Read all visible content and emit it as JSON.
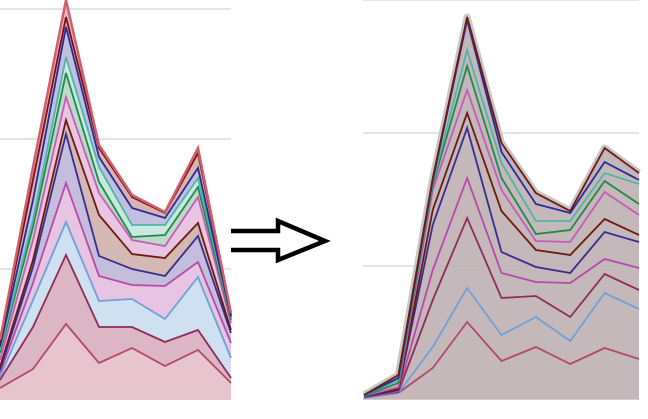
{
  "chart_data": [
    {
      "type": "area",
      "stacked": true,
      "grid": true,
      "grid_interval": 130,
      "ylim": [
        0,
        400
      ],
      "x": [
        0,
        1,
        2,
        3,
        4,
        5,
        6,
        7
      ],
      "series": [
        {
          "color": "#b04a6a",
          "fill": "#e8c4cf",
          "values": [
            11,
            30,
            75,
            36,
            51,
            33,
            49,
            16
          ]
        },
        {
          "color": "#8e2c5a",
          "fill": "#dcb6c4",
          "values": [
            8,
            42,
            69,
            36,
            21,
            24,
            20,
            5
          ]
        },
        {
          "color": "#6fa1d6",
          "fill": "#cfe0f0",
          "values": [
            3,
            27,
            33,
            26,
            28,
            23,
            53,
            20
          ]
        },
        {
          "color": "#b74aa8",
          "fill": "#e6c4e2",
          "values": [
            4,
            17,
            39,
            25,
            14,
            33,
            15,
            15
          ]
        },
        {
          "color": "#3a2d8f",
          "fill": "#c4bedc",
          "values": [
            3,
            16,
            49,
            20,
            16,
            10,
            26,
            10
          ]
        },
        {
          "color": "#6e1a10",
          "fill": "#d4b8b4",
          "values": [
            3,
            7,
            14,
            41,
            15,
            18,
            13,
            3
          ]
        },
        {
          "color": "#c45cb8",
          "fill": "#e8c6e2",
          "values": [
            7,
            20,
            23,
            22,
            14,
            12,
            26,
            7
          ]
        },
        {
          "color": "#1f8a4a",
          "fill": "#bcdcc8",
          "values": [
            7,
            13,
            24,
            11,
            3,
            11,
            10,
            3
          ]
        },
        {
          "color": "#4fb5a5",
          "fill": "#c8e8e0",
          "values": [
            3,
            7,
            16,
            15,
            12,
            10,
            9,
            2
          ]
        },
        {
          "color": "#2a2a9a",
          "fill": "#c2c0e0",
          "values": [
            3,
            20,
            30,
            10,
            17,
            7,
            10,
            1
          ]
        },
        {
          "color": "#7a1010",
          "fill": "#d8b4b0",
          "values": [
            4,
            20,
            10,
            9,
            11,
            5,
            15,
            2
          ]
        },
        {
          "color": "#d06070",
          "fill": "#eab8c0",
          "values": [
            3,
            13,
            17,
            3,
            2,
            1,
            5,
            2
          ]
        }
      ]
    },
    {
      "type": "area",
      "stacked": true,
      "grid": true,
      "grid_interval": 133,
      "ylim": [
        0,
        400
      ],
      "x": [
        0,
        1,
        2,
        3,
        4,
        5,
        6,
        7,
        8
      ],
      "series": [
        {
          "color": "#b04a6a",
          "values": [
            1,
            6,
            31,
            77,
            38,
            52,
            35,
            51,
            40
          ]
        },
        {
          "color": "#6fa1d6",
          "values": [
            0,
            0,
            21,
            34,
            26,
            30,
            23,
            55,
            50
          ]
        },
        {
          "color": "#8e2c5a",
          "values": [
            1,
            1,
            47,
            70,
            37,
            21,
            24,
            19,
            19
          ]
        },
        {
          "color": "#b74aa8",
          "values": [
            0,
            1,
            30,
            40,
            25,
            14,
            34,
            15,
            22
          ]
        },
        {
          "color": "#3a2d8f",
          "values": [
            0,
            1,
            45,
            50,
            21,
            15,
            10,
            27,
            26
          ]
        },
        {
          "color": "#6e1a10",
          "values": [
            1,
            1,
            15,
            15,
            41,
            17,
            18,
            13,
            7
          ]
        },
        {
          "color": "#c45cb8",
          "values": [
            0,
            2,
            20,
            23,
            21,
            9,
            13,
            27,
            20
          ]
        },
        {
          "color": "#1f8a4a",
          "values": [
            0,
            4,
            5,
            24,
            12,
            7,
            12,
            11,
            11
          ]
        },
        {
          "color": "#4fb5a5",
          "values": [
            1,
            3,
            3,
            16,
            15,
            13,
            9,
            8,
            20
          ]
        },
        {
          "color": "#2a2a9a",
          "values": [
            0,
            2,
            2,
            30,
            11,
            17,
            8,
            11,
            4
          ]
        },
        {
          "color": "#6e1a10",
          "values": [
            0,
            3,
            2,
            3,
            9,
            11,
            2,
            14,
            7
          ]
        }
      ]
    }
  ],
  "arrow": {
    "icon": "right-arrow-outline-icon",
    "color": "#000000"
  }
}
